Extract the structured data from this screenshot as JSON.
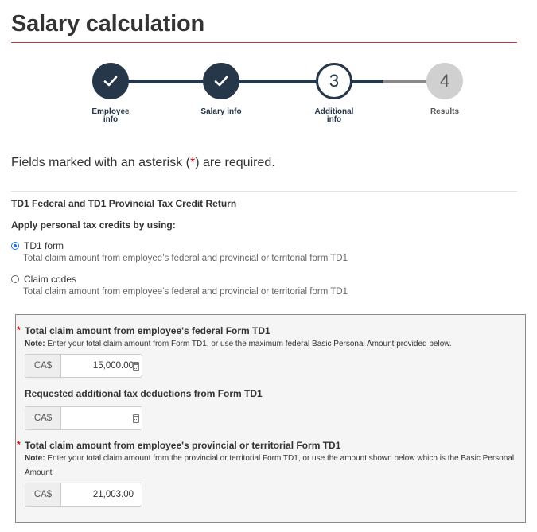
{
  "page": {
    "title": "Salary calculation"
  },
  "stepper": {
    "steps": [
      {
        "label": "Employee\ninfo",
        "state": "done",
        "icon": "check-icon"
      },
      {
        "label": "Salary info",
        "state": "done",
        "icon": "check-icon"
      },
      {
        "label": "Additional\ninfo",
        "state": "current",
        "number": "3"
      },
      {
        "label": "Results",
        "state": "todo",
        "number": "4"
      }
    ]
  },
  "form": {
    "required_note_before": "Fields marked with an asterisk (",
    "required_note_asterisk": "*",
    "required_note_after": ") are required.",
    "section_heading": "TD1 Federal and TD1 Provincial Tax Credit Return",
    "apply_heading": "Apply personal tax credits by using:",
    "options": [
      {
        "label": "TD1 form",
        "description": "Total claim amount from employee’s federal and provincial or territorial form TD1",
        "selected": true
      },
      {
        "label": "Claim codes",
        "description": "Total claim amount from employee’s federal and provincial or territorial form TD1",
        "selected": false
      }
    ],
    "fields": {
      "federal": {
        "asterisk": "*",
        "label": "Total claim amount from employee's federal Form TD1",
        "note_strong": "Note:",
        "note": " Enter your total claim amount from Form TD1, or use the maximum federal Basic Personal Amount provided below.",
        "prefix": "CA$",
        "value": "15,000.00"
      },
      "additional": {
        "label": "Requested additional tax deductions from Form TD1",
        "prefix": "CA$",
        "value": ""
      },
      "provincial": {
        "asterisk": "*",
        "label": "Total claim amount from employee's provincial or territorial Form TD1",
        "note_strong": "Note:",
        "note": " Enter your total claim amount from the provincial or territorial Form TD1, or use the amount shown below which is the Basic Personal Amount",
        "prefix": "CA$",
        "value": "21,003.00"
      }
    }
  },
  "colors": {
    "brand_dark": "#26374a",
    "title_rule": "#af3c43",
    "required": "#d3080c",
    "radio_selected": "#1a73e8"
  }
}
